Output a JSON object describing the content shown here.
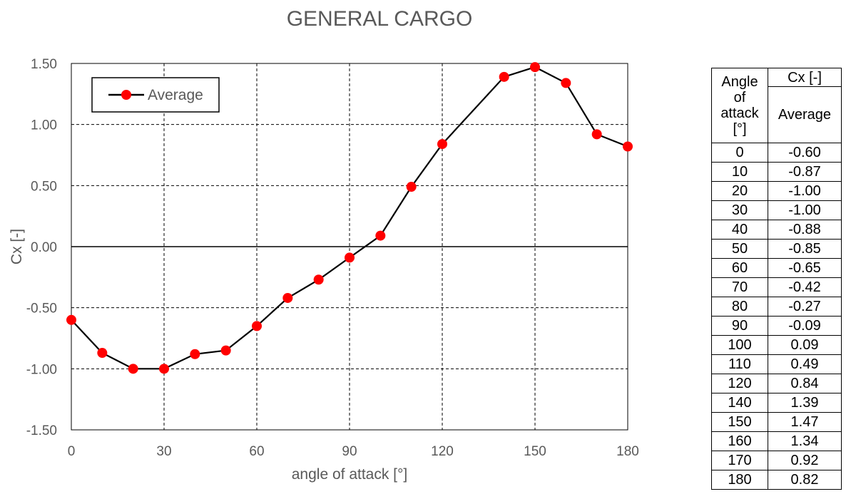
{
  "chart_data": {
    "type": "line",
    "title": "GENERAL CARGO",
    "xlabel": "angle of attack [°]",
    "ylabel": "Cx [-]",
    "xlim": [
      0,
      180
    ],
    "ylim": [
      -1.5,
      1.5
    ],
    "x_ticks": [
      "0",
      "30",
      "60",
      "90",
      "120",
      "150",
      "180"
    ],
    "y_ticks": [
      "1.50",
      "1.00",
      "0.50",
      "0.00",
      "-0.50",
      "-1.00",
      "-1.50"
    ],
    "grid": true,
    "legend_position": "top-left",
    "series": [
      {
        "name": "Average",
        "color": "#ff0000",
        "line_color": "#000000",
        "x": [
          0,
          10,
          20,
          30,
          40,
          50,
          60,
          70,
          80,
          90,
          100,
          110,
          120,
          140,
          150,
          160,
          170,
          180
        ],
        "y": [
          -0.6,
          -0.87,
          -1.0,
          -1.0,
          -0.88,
          -0.85,
          -0.65,
          -0.42,
          -0.27,
          -0.09,
          0.09,
          0.49,
          0.84,
          1.39,
          1.47,
          1.34,
          0.92,
          0.82
        ]
      }
    ]
  },
  "table": {
    "header_col1": [
      "Angle",
      "of",
      "attack",
      "[°]"
    ],
    "header_col2_top": "Cx [-]",
    "header_col2_sub": "Average",
    "rows": [
      [
        "0",
        "-0.60"
      ],
      [
        "10",
        "-0.87"
      ],
      [
        "20",
        "-1.00"
      ],
      [
        "30",
        "-1.00"
      ],
      [
        "40",
        "-0.88"
      ],
      [
        "50",
        "-0.85"
      ],
      [
        "60",
        "-0.65"
      ],
      [
        "70",
        "-0.42"
      ],
      [
        "80",
        "-0.27"
      ],
      [
        "90",
        "-0.09"
      ],
      [
        "100",
        "0.09"
      ],
      [
        "110",
        "0.49"
      ],
      [
        "120",
        "0.84"
      ],
      [
        "140",
        "1.39"
      ],
      [
        "150",
        "1.47"
      ],
      [
        "160",
        "1.34"
      ],
      [
        "170",
        "0.92"
      ],
      [
        "180",
        "0.82"
      ]
    ]
  }
}
